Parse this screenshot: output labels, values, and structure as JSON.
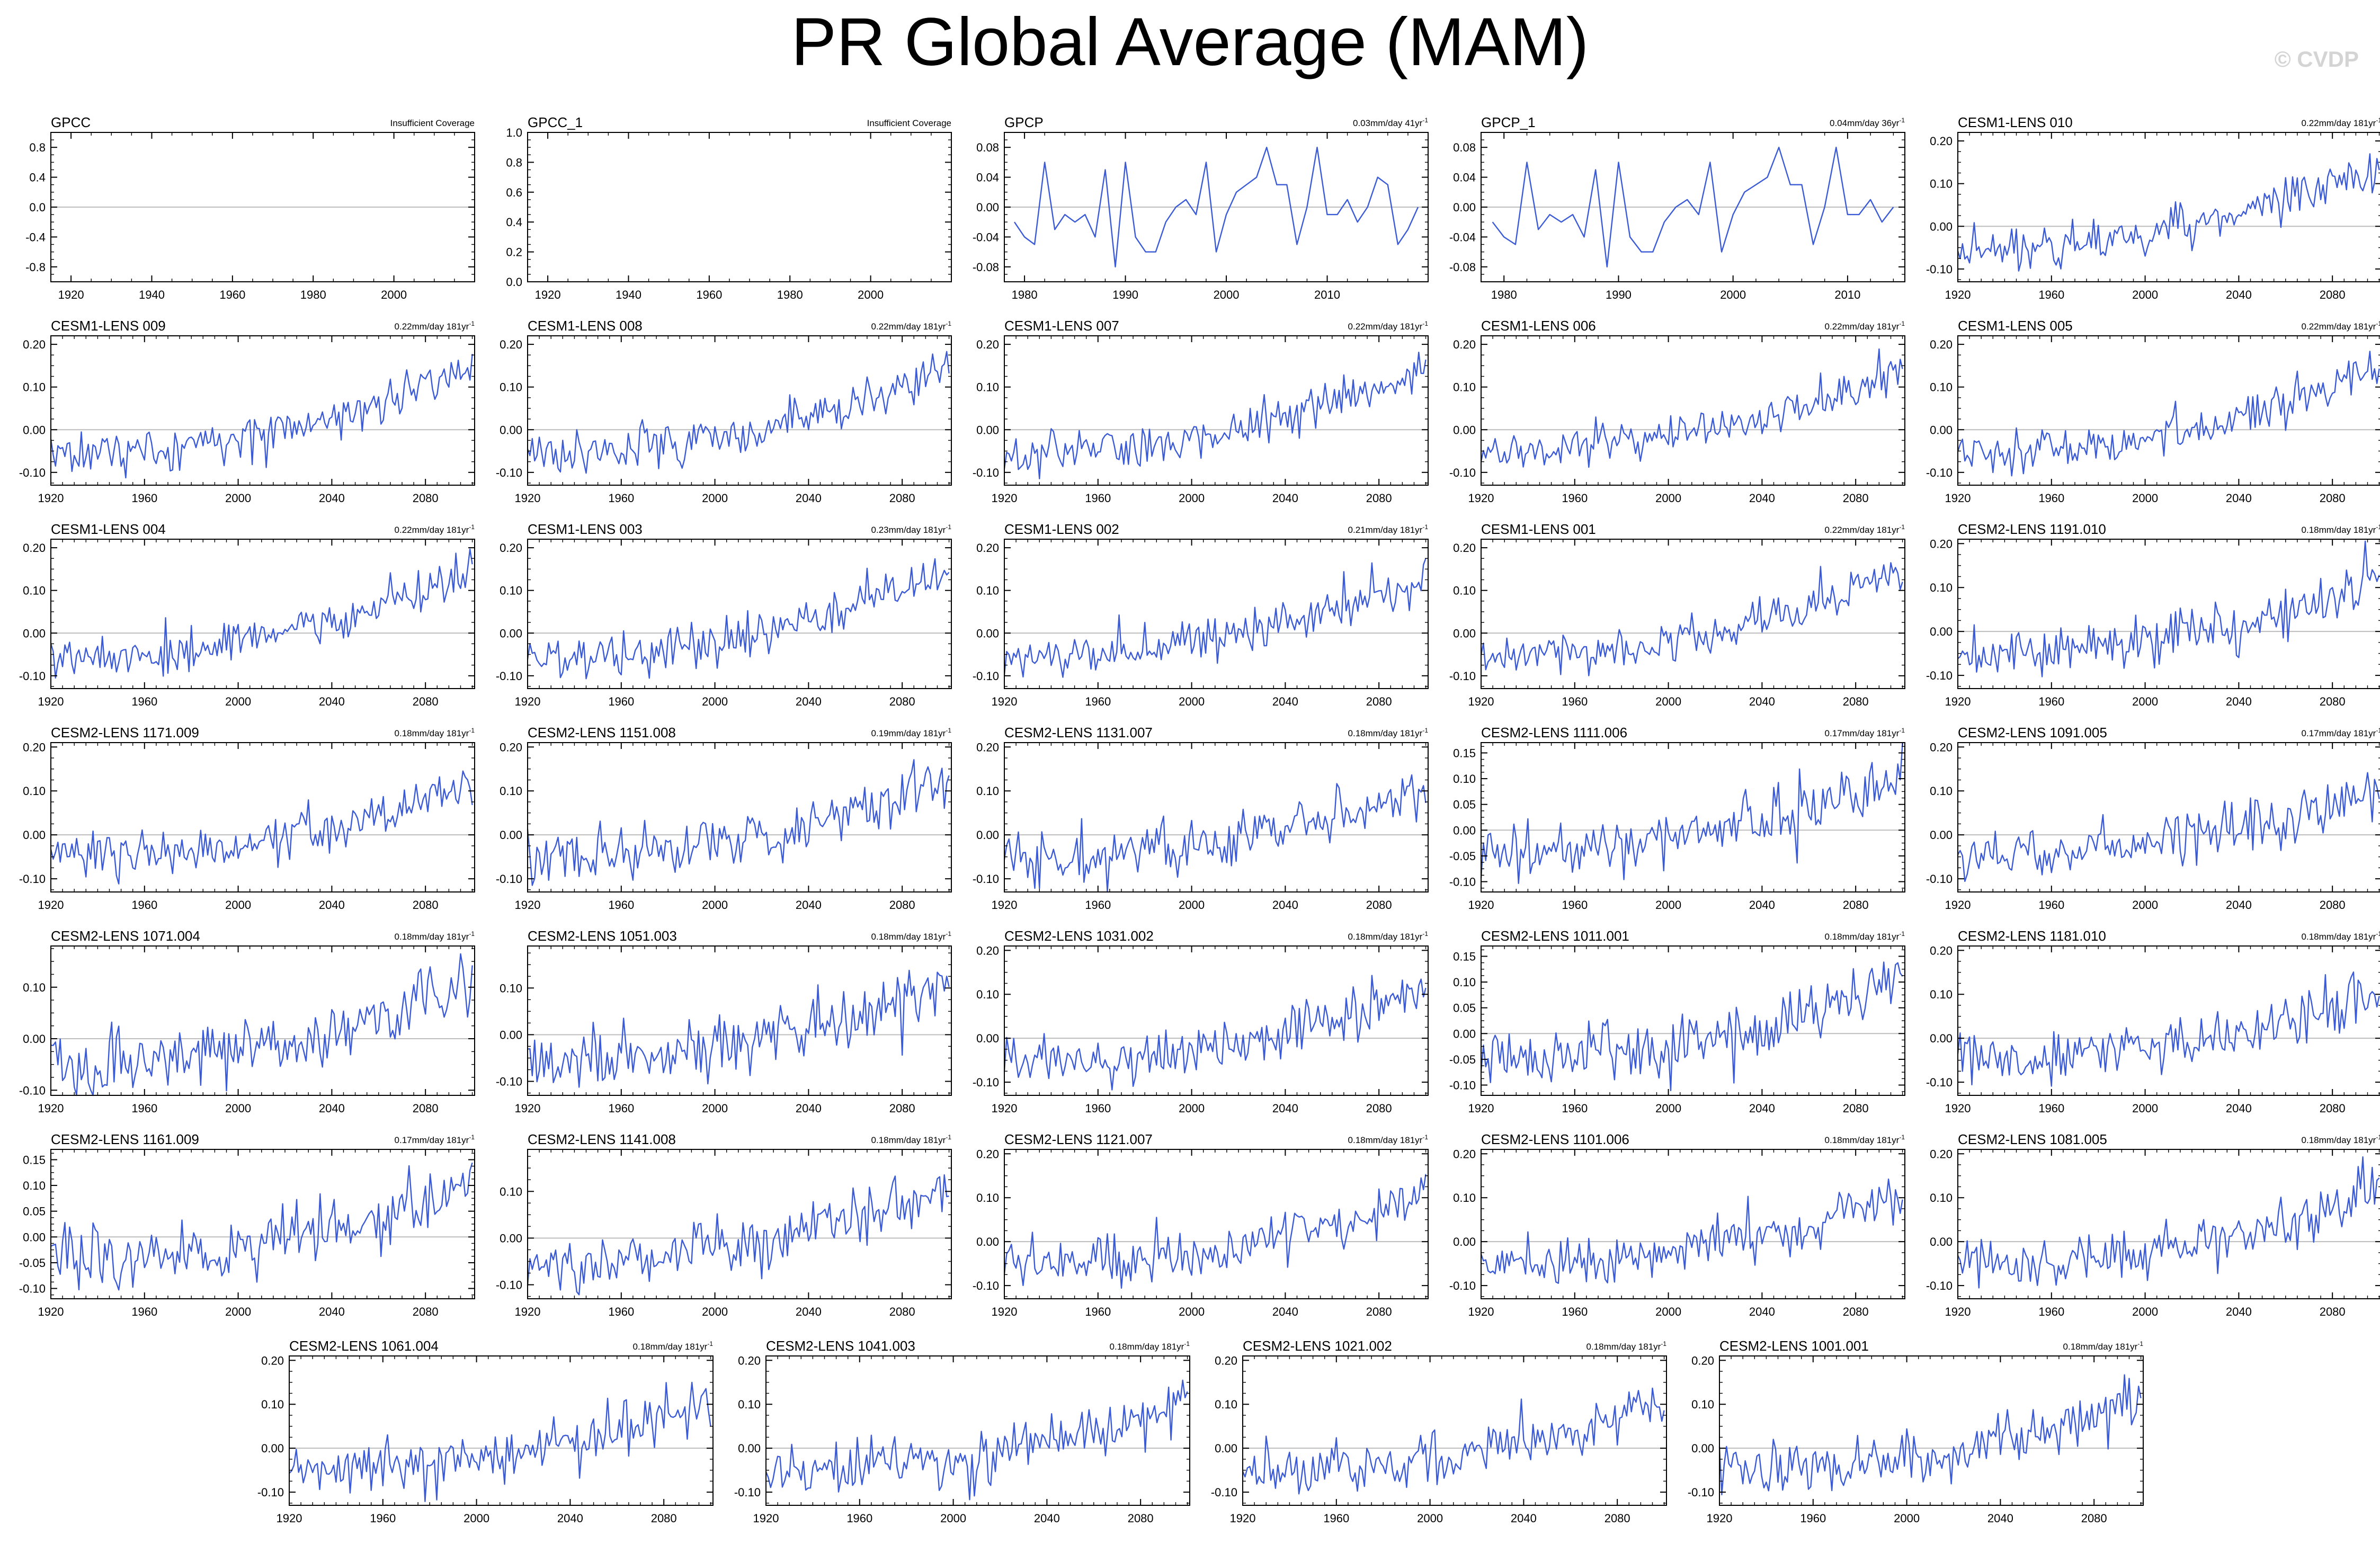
{
  "title": "PR Global Average (MAM)",
  "watermark": "© CVDP",
  "series_color": "#3b5bd6",
  "chart_data": [
    {
      "type": "line",
      "name": "GPCC",
      "trend": "Insufficient Coverage",
      "xlim": [
        1915,
        2020
      ],
      "xticks": [
        1920,
        1940,
        1960,
        1980,
        2000
      ],
      "ylim": [
        -1.0,
        1.0
      ],
      "yticks": [
        -0.8,
        -0.4,
        0.0,
        0.4,
        0.8
      ],
      "x": [],
      "y": []
    },
    {
      "type": "line",
      "name": "GPCC_1",
      "trend": "Insufficient Coverage",
      "xlim": [
        1915,
        2020
      ],
      "xticks": [
        1920,
        1940,
        1960,
        1980,
        2000
      ],
      "ylim": [
        0.0,
        1.0
      ],
      "yticks": [
        0.0,
        0.2,
        0.4,
        0.6,
        0.8,
        1.0
      ],
      "x": [],
      "y": []
    },
    {
      "type": "line",
      "name": "GPCP",
      "trend": "0.03mm/day 41yr",
      "trend_sup": "-1",
      "xlim": [
        1978,
        2020
      ],
      "xticks": [
        1980,
        1990,
        2000,
        2010
      ],
      "ylim": [
        -0.1,
        0.1
      ],
      "yticks": [
        -0.08,
        -0.04,
        0.0,
        0.04,
        0.08
      ],
      "x": [
        1979,
        1980,
        1981,
        1982,
        1983,
        1984,
        1985,
        1986,
        1987,
        1988,
        1989,
        1990,
        1991,
        1992,
        1993,
        1994,
        1995,
        1996,
        1997,
        1998,
        1999,
        2000,
        2001,
        2002,
        2003,
        2004,
        2005,
        2006,
        2007,
        2008,
        2009,
        2010,
        2011,
        2012,
        2013,
        2014,
        2015,
        2016,
        2017,
        2018,
        2019
      ],
      "y": [
        -0.02,
        -0.04,
        -0.05,
        0.06,
        -0.03,
        -0.01,
        -0.02,
        -0.01,
        -0.04,
        0.05,
        -0.08,
        0.06,
        -0.04,
        -0.06,
        -0.06,
        -0.02,
        0.0,
        0.01,
        -0.01,
        0.06,
        -0.06,
        -0.01,
        0.02,
        0.03,
        0.04,
        0.08,
        0.03,
        0.03,
        -0.05,
        0.0,
        0.08,
        -0.01,
        -0.01,
        0.01,
        -0.02,
        0.0,
        0.04,
        0.03,
        -0.05,
        -0.03,
        0.0
      ]
    },
    {
      "type": "line",
      "name": "GPCP_1",
      "trend": "0.04mm/day 36yr",
      "trend_sup": "-1",
      "xlim": [
        1978,
        2015
      ],
      "xticks": [
        1980,
        1990,
        2000,
        2010
      ],
      "ylim": [
        -0.1,
        0.1
      ],
      "yticks": [
        -0.08,
        -0.04,
        0.0,
        0.04,
        0.08
      ],
      "x": [
        1979,
        1980,
        1981,
        1982,
        1983,
        1984,
        1985,
        1986,
        1987,
        1988,
        1989,
        1990,
        1991,
        1992,
        1993,
        1994,
        1995,
        1996,
        1997,
        1998,
        1999,
        2000,
        2001,
        2002,
        2003,
        2004,
        2005,
        2006,
        2007,
        2008,
        2009,
        2010,
        2011,
        2012,
        2013,
        2014
      ],
      "y": [
        -0.02,
        -0.04,
        -0.05,
        0.06,
        -0.03,
        -0.01,
        -0.02,
        -0.01,
        -0.04,
        0.05,
        -0.08,
        0.06,
        -0.04,
        -0.06,
        -0.06,
        -0.02,
        0.0,
        0.01,
        -0.01,
        0.06,
        -0.06,
        -0.01,
        0.02,
        0.03,
        0.04,
        0.08,
        0.03,
        0.03,
        -0.05,
        0.0,
        0.08,
        -0.01,
        -0.01,
        0.01,
        -0.02,
        0.0
      ]
    },
    {
      "type": "line",
      "name": "CESM1-LENS 010",
      "trend": "0.22mm/day 181yr",
      "trend_sup": "-1",
      "seed": 10,
      "base": -0.055,
      "slope": 0.2,
      "noise": 0.025,
      "xlim": [
        1920,
        2101
      ],
      "xticks": [
        1920,
        1960,
        2000,
        2040,
        2080
      ],
      "ylim": [
        -0.13,
        0.22
      ],
      "yticks": [
        -0.1,
        0.0,
        0.1,
        0.2
      ]
    },
    {
      "type": "line",
      "name": "CESM1-LENS 009",
      "trend": "0.22mm/day 181yr",
      "trend_sup": "-1",
      "seed": 9,
      "base": -0.055,
      "slope": 0.2,
      "noise": 0.025,
      "xlim": [
        1920,
        2101
      ],
      "xticks": [
        1920,
        1960,
        2000,
        2040,
        2080
      ],
      "ylim": [
        -0.13,
        0.22
      ],
      "yticks": [
        -0.1,
        0.0,
        0.1,
        0.2
      ]
    },
    {
      "type": "line",
      "name": "CESM1-LENS 008",
      "trend": "0.22mm/day 181yr",
      "trend_sup": "-1",
      "seed": 8,
      "base": -0.055,
      "slope": 0.2,
      "noise": 0.025,
      "xlim": [
        1920,
        2101
      ],
      "xticks": [
        1920,
        1960,
        2000,
        2040,
        2080
      ],
      "ylim": [
        -0.13,
        0.22
      ],
      "yticks": [
        -0.1,
        0.0,
        0.1,
        0.2
      ]
    },
    {
      "type": "line",
      "name": "CESM1-LENS 007",
      "trend": "0.22mm/day 181yr",
      "trend_sup": "-1",
      "seed": 7,
      "base": -0.055,
      "slope": 0.2,
      "noise": 0.025,
      "xlim": [
        1920,
        2101
      ],
      "xticks": [
        1920,
        1960,
        2000,
        2040,
        2080
      ],
      "ylim": [
        -0.13,
        0.22
      ],
      "yticks": [
        -0.1,
        0.0,
        0.1,
        0.2
      ]
    },
    {
      "type": "line",
      "name": "CESM1-LENS 006",
      "trend": "0.22mm/day 181yr",
      "trend_sup": "-1",
      "seed": 6,
      "base": -0.055,
      "slope": 0.2,
      "noise": 0.025,
      "xlim": [
        1920,
        2101
      ],
      "xticks": [
        1920,
        1960,
        2000,
        2040,
        2080
      ],
      "ylim": [
        -0.13,
        0.22
      ],
      "yticks": [
        -0.1,
        0.0,
        0.1,
        0.2
      ]
    },
    {
      "type": "line",
      "name": "CESM1-LENS 005",
      "trend": "0.22mm/day 181yr",
      "trend_sup": "-1",
      "seed": 5,
      "base": -0.055,
      "slope": 0.2,
      "noise": 0.025,
      "xlim": [
        1920,
        2101
      ],
      "xticks": [
        1920,
        1960,
        2000,
        2040,
        2080
      ],
      "ylim": [
        -0.13,
        0.22
      ],
      "yticks": [
        -0.1,
        0.0,
        0.1,
        0.2
      ]
    },
    {
      "type": "line",
      "name": "CESM1-LENS 004",
      "trend": "0.22mm/day 181yr",
      "trend_sup": "-1",
      "seed": 4,
      "base": -0.055,
      "slope": 0.2,
      "noise": 0.025,
      "xlim": [
        1920,
        2101
      ],
      "xticks": [
        1920,
        1960,
        2000,
        2040,
        2080
      ],
      "ylim": [
        -0.13,
        0.22
      ],
      "yticks": [
        -0.1,
        0.0,
        0.1,
        0.2
      ]
    },
    {
      "type": "line",
      "name": "CESM1-LENS 003",
      "trend": "0.23mm/day 181yr",
      "trend_sup": "-1",
      "seed": 3,
      "base": -0.055,
      "slope": 0.21,
      "noise": 0.025,
      "xlim": [
        1920,
        2101
      ],
      "xticks": [
        1920,
        1960,
        2000,
        2040,
        2080
      ],
      "ylim": [
        -0.13,
        0.22
      ],
      "yticks": [
        -0.1,
        0.0,
        0.1,
        0.2
      ]
    },
    {
      "type": "line",
      "name": "CESM1-LENS 002",
      "trend": "0.21mm/day 181yr",
      "trend_sup": "-1",
      "seed": 2,
      "base": -0.055,
      "slope": 0.19,
      "noise": 0.025,
      "xlim": [
        1920,
        2101
      ],
      "xticks": [
        1920,
        1960,
        2000,
        2040,
        2080
      ],
      "ylim": [
        -0.13,
        0.22
      ],
      "yticks": [
        -0.1,
        0.0,
        0.1,
        0.2
      ]
    },
    {
      "type": "line",
      "name": "CESM1-LENS 001",
      "trend": "0.22mm/day 181yr",
      "trend_sup": "-1",
      "seed": 1,
      "base": -0.055,
      "slope": 0.2,
      "noise": 0.025,
      "xlim": [
        1920,
        2101
      ],
      "xticks": [
        1920,
        1960,
        2000,
        2040,
        2080
      ],
      "ylim": [
        -0.13,
        0.22
      ],
      "yticks": [
        -0.1,
        0.0,
        0.1,
        0.2
      ]
    },
    {
      "type": "line",
      "name": "CESM2-LENS 1191.010",
      "trend": "0.18mm/day 181yr",
      "trend_sup": "-1",
      "seed": 20,
      "base": -0.05,
      "slope": 0.16,
      "noise": 0.03,
      "xlim": [
        1920,
        2101
      ],
      "xticks": [
        1920,
        1960,
        2000,
        2040,
        2080
      ],
      "ylim": [
        -0.13,
        0.21
      ],
      "yticks": [
        -0.1,
        0.0,
        0.1,
        0.2
      ]
    },
    {
      "type": "line",
      "name": "CESM2-LENS 1171.009",
      "trend": "0.18mm/day 181yr",
      "trend_sup": "-1",
      "seed": 21,
      "base": -0.05,
      "slope": 0.16,
      "noise": 0.03,
      "xlim": [
        1920,
        2101
      ],
      "xticks": [
        1920,
        1960,
        2000,
        2040,
        2080
      ],
      "ylim": [
        -0.13,
        0.21
      ],
      "yticks": [
        -0.1,
        0.0,
        0.1,
        0.2
      ]
    },
    {
      "type": "line",
      "name": "CESM2-LENS 1151.008",
      "trend": "0.19mm/day 181yr",
      "trend_sup": "-1",
      "seed": 22,
      "base": -0.05,
      "slope": 0.17,
      "noise": 0.03,
      "xlim": [
        1920,
        2101
      ],
      "xticks": [
        1920,
        1960,
        2000,
        2040,
        2080
      ],
      "ylim": [
        -0.13,
        0.21
      ],
      "yticks": [
        -0.1,
        0.0,
        0.1,
        0.2
      ]
    },
    {
      "type": "line",
      "name": "CESM2-LENS 1131.007",
      "trend": "0.18mm/day 181yr",
      "trend_sup": "-1",
      "seed": 23,
      "base": -0.05,
      "slope": 0.16,
      "noise": 0.03,
      "xlim": [
        1920,
        2101
      ],
      "xticks": [
        1920,
        1960,
        2000,
        2040,
        2080
      ],
      "ylim": [
        -0.13,
        0.21
      ],
      "yticks": [
        -0.1,
        0.0,
        0.1,
        0.2
      ]
    },
    {
      "type": "line",
      "name": "CESM2-LENS 1111.006",
      "trend": "0.17mm/day 181yr",
      "trend_sup": "-1",
      "seed": 24,
      "base": -0.045,
      "slope": 0.15,
      "noise": 0.03,
      "xlim": [
        1920,
        2101
      ],
      "xticks": [
        1920,
        1960,
        2000,
        2040,
        2080
      ],
      "ylim": [
        -0.12,
        0.17
      ],
      "yticks": [
        -0.1,
        -0.05,
        0.0,
        0.05,
        0.1,
        0.15
      ]
    },
    {
      "type": "line",
      "name": "CESM2-LENS 1091.005",
      "trend": "0.17mm/day 181yr",
      "trend_sup": "-1",
      "seed": 25,
      "base": -0.045,
      "slope": 0.15,
      "noise": 0.03,
      "xlim": [
        1920,
        2101
      ],
      "xticks": [
        1920,
        1960,
        2000,
        2040,
        2080
      ],
      "ylim": [
        -0.13,
        0.21
      ],
      "yticks": [
        -0.1,
        0.0,
        0.1,
        0.2
      ]
    },
    {
      "type": "line",
      "name": "CESM2-LENS 1071.004",
      "trend": "0.18mm/day 181yr",
      "trend_sup": "-1",
      "seed": 26,
      "base": -0.05,
      "slope": 0.16,
      "noise": 0.03,
      "xlim": [
        1920,
        2101
      ],
      "xticks": [
        1920,
        1960,
        2000,
        2040,
        2080
      ],
      "ylim": [
        -0.11,
        0.18
      ],
      "yticks": [
        -0.1,
        0.0,
        0.1
      ]
    },
    {
      "type": "line",
      "name": "CESM2-LENS 1051.003",
      "trend": "0.18mm/day 181yr",
      "trend_sup": "-1",
      "seed": 27,
      "base": -0.05,
      "slope": 0.16,
      "noise": 0.03,
      "xlim": [
        1920,
        2101
      ],
      "xticks": [
        1920,
        1960,
        2000,
        2040,
        2080
      ],
      "ylim": [
        -0.13,
        0.19
      ],
      "yticks": [
        -0.1,
        0.0,
        0.1
      ]
    },
    {
      "type": "line",
      "name": "CESM2-LENS 1031.002",
      "trend": "0.18mm/day 181yr",
      "trend_sup": "-1",
      "seed": 28,
      "base": -0.05,
      "slope": 0.16,
      "noise": 0.03,
      "xlim": [
        1920,
        2101
      ],
      "xticks": [
        1920,
        1960,
        2000,
        2040,
        2080
      ],
      "ylim": [
        -0.13,
        0.21
      ],
      "yticks": [
        -0.1,
        0.0,
        0.1,
        0.2
      ]
    },
    {
      "type": "line",
      "name": "CESM2-LENS 1011.001",
      "trend": "0.18mm/day 181yr",
      "trend_sup": "-1",
      "seed": 29,
      "base": -0.05,
      "slope": 0.16,
      "noise": 0.03,
      "xlim": [
        1920,
        2101
      ],
      "xticks": [
        1920,
        1960,
        2000,
        2040,
        2080
      ],
      "ylim": [
        -0.12,
        0.17
      ],
      "yticks": [
        -0.1,
        -0.05,
        0.0,
        0.05,
        0.1,
        0.15
      ]
    },
    {
      "type": "line",
      "name": "CESM2-LENS 1181.010",
      "trend": "0.18mm/day 181yr",
      "trend_sup": "-1",
      "seed": 30,
      "base": -0.05,
      "slope": 0.16,
      "noise": 0.03,
      "xlim": [
        1920,
        2101
      ],
      "xticks": [
        1920,
        1960,
        2000,
        2040,
        2080
      ],
      "ylim": [
        -0.13,
        0.21
      ],
      "yticks": [
        -0.1,
        0.0,
        0.1,
        0.2
      ]
    },
    {
      "type": "line",
      "name": "CESM2-LENS 1161.009",
      "trend": "0.17mm/day 181yr",
      "trend_sup": "-1",
      "seed": 31,
      "base": -0.045,
      "slope": 0.15,
      "noise": 0.03,
      "xlim": [
        1920,
        2101
      ],
      "xticks": [
        1920,
        1960,
        2000,
        2040,
        2080
      ],
      "ylim": [
        -0.12,
        0.17
      ],
      "yticks": [
        -0.1,
        -0.05,
        0.0,
        0.05,
        0.1,
        0.15
      ]
    },
    {
      "type": "line",
      "name": "CESM2-LENS 1141.008",
      "trend": "0.18mm/day 181yr",
      "trend_sup": "-1",
      "seed": 32,
      "base": -0.05,
      "slope": 0.16,
      "noise": 0.03,
      "xlim": [
        1920,
        2101
      ],
      "xticks": [
        1920,
        1960,
        2000,
        2040,
        2080
      ],
      "ylim": [
        -0.13,
        0.19
      ],
      "yticks": [
        -0.1,
        0.0,
        0.1
      ]
    },
    {
      "type": "line",
      "name": "CESM2-LENS 1121.007",
      "trend": "0.18mm/day 181yr",
      "trend_sup": "-1",
      "seed": 33,
      "base": -0.05,
      "slope": 0.16,
      "noise": 0.03,
      "xlim": [
        1920,
        2101
      ],
      "xticks": [
        1920,
        1960,
        2000,
        2040,
        2080
      ],
      "ylim": [
        -0.13,
        0.21
      ],
      "yticks": [
        -0.1,
        0.0,
        0.1,
        0.2
      ]
    },
    {
      "type": "line",
      "name": "CESM2-LENS 1101.006",
      "trend": "0.18mm/day 181yr",
      "trend_sup": "-1",
      "seed": 34,
      "base": -0.05,
      "slope": 0.16,
      "noise": 0.03,
      "xlim": [
        1920,
        2101
      ],
      "xticks": [
        1920,
        1960,
        2000,
        2040,
        2080
      ],
      "ylim": [
        -0.13,
        0.21
      ],
      "yticks": [
        -0.1,
        0.0,
        0.1,
        0.2
      ]
    },
    {
      "type": "line",
      "name": "CESM2-LENS 1081.005",
      "trend": "0.18mm/day 181yr",
      "trend_sup": "-1",
      "seed": 35,
      "base": -0.05,
      "slope": 0.16,
      "noise": 0.03,
      "xlim": [
        1920,
        2101
      ],
      "xticks": [
        1920,
        1960,
        2000,
        2040,
        2080
      ],
      "ylim": [
        -0.13,
        0.21
      ],
      "yticks": [
        -0.1,
        0.0,
        0.1,
        0.2
      ]
    },
    {
      "type": "line",
      "name": "CESM2-LENS 1061.004",
      "trend": "0.18mm/day 181yr",
      "trend_sup": "-1",
      "seed": 36,
      "base": -0.05,
      "slope": 0.16,
      "noise": 0.03,
      "xlim": [
        1920,
        2101
      ],
      "xticks": [
        1920,
        1960,
        2000,
        2040,
        2080
      ],
      "ylim": [
        -0.13,
        0.21
      ],
      "yticks": [
        -0.1,
        0.0,
        0.1,
        0.2
      ]
    },
    {
      "type": "line",
      "name": "CESM2-LENS 1041.003",
      "trend": "0.18mm/day 181yr",
      "trend_sup": "-1",
      "seed": 37,
      "base": -0.05,
      "slope": 0.16,
      "noise": 0.03,
      "xlim": [
        1920,
        2101
      ],
      "xticks": [
        1920,
        1960,
        2000,
        2040,
        2080
      ],
      "ylim": [
        -0.13,
        0.21
      ],
      "yticks": [
        -0.1,
        0.0,
        0.1,
        0.2
      ]
    },
    {
      "type": "line",
      "name": "CESM2-LENS 1021.002",
      "trend": "0.18mm/day 181yr",
      "trend_sup": "-1",
      "seed": 38,
      "base": -0.05,
      "slope": 0.16,
      "noise": 0.03,
      "xlim": [
        1920,
        2101
      ],
      "xticks": [
        1920,
        1960,
        2000,
        2040,
        2080
      ],
      "ylim": [
        -0.13,
        0.21
      ],
      "yticks": [
        -0.1,
        0.0,
        0.1,
        0.2
      ]
    },
    {
      "type": "line",
      "name": "CESM2-LENS 1001.001",
      "trend": "0.18mm/day 181yr",
      "trend_sup": "-1",
      "seed": 39,
      "base": -0.05,
      "slope": 0.16,
      "noise": 0.03,
      "xlim": [
        1920,
        2101
      ],
      "xticks": [
        1920,
        1960,
        2000,
        2040,
        2080
      ],
      "ylim": [
        -0.13,
        0.21
      ],
      "yticks": [
        -0.1,
        0.0,
        0.1,
        0.2
      ]
    }
  ]
}
